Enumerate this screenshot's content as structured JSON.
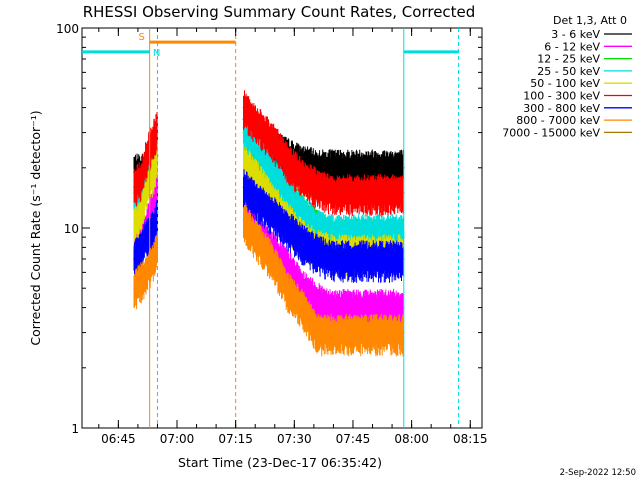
{
  "chart_data": {
    "type": "line",
    "title": "RHESSI Observing Summary Count Rates, Corrected",
    "xlabel": "Start Time (23-Dec-17 06:35:42)",
    "ylabel": "Corrected Count Rate (s⁻¹ detector⁻¹)",
    "yscale": "log",
    "ylim": [
      1,
      100
    ],
    "xlim": [
      "06:35:42",
      "08:18:00"
    ],
    "x_tick_labels": [
      "06:45",
      "07:00",
      "07:15",
      "07:30",
      "07:45",
      "08:00",
      "08:15"
    ],
    "y_tick_labels": [
      "1",
      "10",
      "100"
    ],
    "legend_title": "Det 1,3, Att 0",
    "legend_position": "right",
    "series": [
      {
        "name": "3 - 6 keV",
        "color": "#000000",
        "segments": [
          {
            "x": [
              "06:49",
              "06:51",
              "06:52",
              "06:54",
              "06:55"
            ],
            "y": [
              19,
              19,
              20,
              21,
              23
            ]
          },
          {
            "x": [
              "07:17",
              "07:20",
              "07:24",
              "07:28",
              "07:32",
              "07:36",
              "07:40",
              "07:46",
              "07:52",
              "07:58"
            ],
            "y": [
              35,
              30,
              26,
              23,
              21,
              20,
              20,
              20,
              20,
              20
            ]
          }
        ]
      },
      {
        "name": "6 - 12 keV",
        "color": "#ff00ff",
        "segments": [
          {
            "x": [
              "06:49",
              "06:51",
              "06:52",
              "06:54",
              "06:55"
            ],
            "y": [
              8,
              9,
              10,
              13,
              16
            ]
          },
          {
            "x": [
              "07:17",
              "07:20",
              "07:24",
              "07:28",
              "07:32",
              "07:36",
              "07:40",
              "07:46",
              "07:52",
              "07:58"
            ],
            "y": [
              13,
              10,
              8,
              6.5,
              5,
              4.3,
              4,
              4,
              4,
              4
            ]
          }
        ]
      },
      {
        "name": "12 - 25 keV",
        "color": "#00dd00",
        "segments": [
          {
            "x": [
              "06:49",
              "06:51",
              "06:52",
              "06:54",
              "06:55"
            ],
            "y": [
              15,
              17,
              20,
              24,
              28
            ]
          },
          {
            "x": [
              "07:17",
              "07:20",
              "07:24",
              "07:28",
              "07:32",
              "07:36",
              "07:40",
              "07:46",
              "07:52",
              "07:58"
            ],
            "y": [
              30,
              24,
              19,
              15,
              12,
              10,
              9,
              9,
              9,
              9
            ]
          }
        ]
      },
      {
        "name": "25 - 50 keV",
        "color": "#00dddd",
        "segments": [
          {
            "x": [
              "06:49",
              "06:51",
              "06:52",
              "06:54",
              "06:55"
            ],
            "y": [
              13,
              16,
              20,
              26,
              30
            ]
          },
          {
            "x": [
              "07:17",
              "07:20",
              "07:24",
              "07:28",
              "07:32",
              "07:36",
              "07:40",
              "07:46",
              "07:52",
              "07:58"
            ],
            "y": [
              32,
              26,
              20,
              15,
              12,
              10,
              9.5,
              9.5,
              9.5,
              9.5
            ]
          }
        ]
      },
      {
        "name": "50 - 100 keV",
        "color": "#dddd00",
        "segments": [
          {
            "x": [
              "06:49",
              "06:51",
              "06:52",
              "06:54",
              "06:55"
            ],
            "y": [
              10,
              12,
              15,
              19,
              22
            ]
          },
          {
            "x": [
              "07:17",
              "07:20",
              "07:24",
              "07:28",
              "07:32",
              "07:36",
              "07:40",
              "07:46",
              "07:52",
              "07:58"
            ],
            "y": [
              22,
              18,
              14,
              11,
              9,
              8,
              7.5,
              7.5,
              7.5,
              7.5
            ]
          }
        ]
      },
      {
        "name": "100 - 300 keV",
        "color": "#ff0000",
        "segments": [
          {
            "x": [
              "06:49",
              "06:51",
              "06:52",
              "06:54",
              "06:55"
            ],
            "y": [
              16,
              18,
              22,
              28,
              32
            ]
          },
          {
            "x": [
              "07:17",
              "07:20",
              "07:24",
              "07:28",
              "07:32",
              "07:36",
              "07:40",
              "07:46",
              "07:52",
              "07:58"
            ],
            "y": [
              40,
              34,
              28,
              22,
              18,
              16,
              15,
              15,
              15,
              15
            ]
          }
        ]
      },
      {
        "name": "300 - 800 keV",
        "color": "#0000ff",
        "segments": [
          {
            "x": [
              "06:49",
              "06:51",
              "06:52",
              "06:54",
              "06:55"
            ],
            "y": [
              7,
              8,
              9,
              10,
              12
            ]
          },
          {
            "x": [
              "07:17",
              "07:20",
              "07:24",
              "07:28",
              "07:32",
              "07:36",
              "07:40",
              "07:46",
              "07:52",
              "07:58"
            ],
            "y": [
              16,
              14,
              12,
              10,
              8.5,
              7.5,
              7,
              7,
              7,
              7
            ]
          }
        ]
      },
      {
        "name": "800 - 7000 keV",
        "color": "#ff8800",
        "segments": [
          {
            "x": [
              "06:49",
              "06:51",
              "06:52",
              "06:54",
              "06:55"
            ],
            "y": [
              5,
              5.5,
              6,
              7,
              8
            ]
          },
          {
            "x": [
              "07:17",
              "07:20",
              "07:24",
              "07:28",
              "07:32",
              "07:36",
              "07:40",
              "07:46",
              "07:52",
              "07:58"
            ],
            "y": [
              11,
              9,
              7,
              5,
              4,
              3,
              3,
              3,
              3,
              3
            ]
          }
        ]
      },
      {
        "name": "7000 - 15000 keV",
        "color": "#aa7700",
        "segments": []
      }
    ],
    "annotations": [
      {
        "label": "S",
        "color": "#ff8800",
        "from": "06:53",
        "to": "07:15",
        "y": 85
      },
      {
        "label": "N",
        "color": "#00dddd",
        "from": "06:35:42",
        "to": "06:53",
        "y": 76
      },
      {
        "label": "",
        "color": "#00dddd",
        "from": "07:58",
        "to": "08:12",
        "y": 76
      }
    ],
    "vertical_lines": [
      {
        "x": "06:53",
        "color": "#ff8800",
        "style": "solid"
      },
      {
        "x": "06:55",
        "color": "#00dddd",
        "style": "dashed"
      },
      {
        "x": "07:15",
        "color": "#ff8800",
        "style": "dashed"
      },
      {
        "x": "07:58",
        "color": "#00dddd",
        "style": "solid"
      },
      {
        "x": "08:12",
        "color": "#00dddd",
        "style": "dashed"
      }
    ]
  },
  "footer": {
    "stamp": "2-Sep-2022 12:50"
  }
}
